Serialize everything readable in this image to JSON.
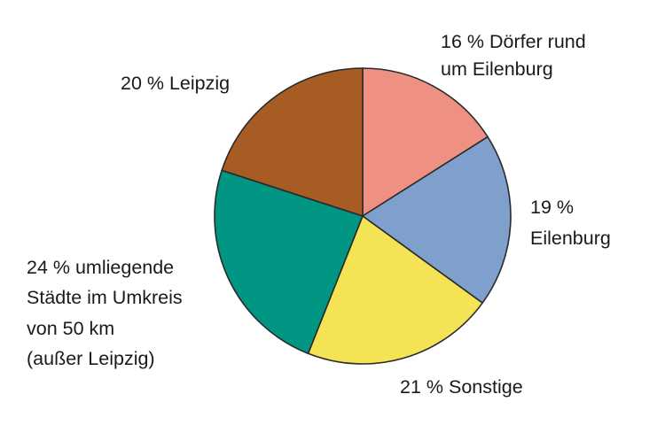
{
  "chart_data": {
    "type": "pie",
    "start_angle_deg": 0,
    "direction": "clockwise",
    "slices": [
      {
        "label_lines": [
          "16 % Dörfer rund",
          "um Eilenburg"
        ],
        "value": 16,
        "color": "#ef9182"
      },
      {
        "label_lines": [
          "19 %",
          "Eilenburg"
        ],
        "value": 19,
        "color": "#7f9fcd"
      },
      {
        "label_lines": [
          "21 % Sonstige"
        ],
        "value": 21,
        "color": "#f4e354"
      },
      {
        "label_lines": [
          "24 % umliegende",
          "Städte im Umkreis",
          "von 50 km",
          "(außer Leipzig)"
        ],
        "value": 24,
        "color": "#009683"
      },
      {
        "label_lines": [
          "20 % Leipzig"
        ],
        "value": 20,
        "color": "#a65c22"
      }
    ]
  }
}
